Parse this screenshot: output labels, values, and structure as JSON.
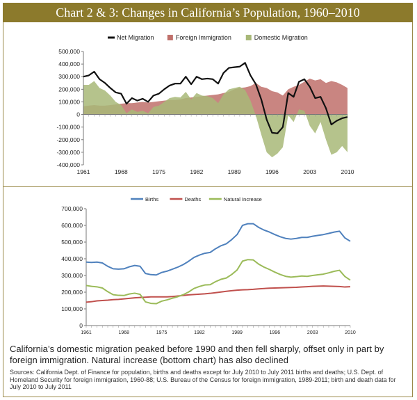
{
  "title": "Chart 2 & 3: Changes in California’s Population, 1960–2010",
  "caption": "California’s domestic migration peaked before 1990 and then fell sharply, offset only in part by foreign immigration. Natural increase (bottom chart) has also declined",
  "sources": "Sources: California Dept. of Finance for population, births and deaths except for July 2010 to July 2011 births and deaths; U.S. Dept. of Homeland Security for foreign immigration, 1960-88; U.S. Bureau of the Census for foreign immigration, 1989-2011; birth and death data for July 2010 to July 2011",
  "chart_data": [
    {
      "type": "area",
      "title": "",
      "legend_position": "top",
      "x": [
        1961,
        1962,
        1963,
        1964,
        1965,
        1966,
        1967,
        1968,
        1969,
        1970,
        1971,
        1972,
        1973,
        1974,
        1975,
        1976,
        1977,
        1978,
        1979,
        1980,
        1981,
        1982,
        1983,
        1984,
        1985,
        1986,
        1987,
        1988,
        1989,
        1990,
        1991,
        1992,
        1993,
        1994,
        1995,
        1996,
        1997,
        1998,
        1999,
        2000,
        2001,
        2002,
        2003,
        2004,
        2005,
        2006,
        2007,
        2008,
        2009,
        2010
      ],
      "x_ticks": [
        "1961",
        "1968",
        "1975",
        "1982",
        "1989",
        "1996",
        "2003",
        "2010"
      ],
      "y_ticks": [
        "500,000",
        "400,000",
        "300,000",
        "200,000",
        "100,000",
        "0",
        "-100,000",
        "-200,000",
        "-300,000",
        "-400,000"
      ],
      "ylim": [
        -400000,
        500000
      ],
      "colors": {
        "net": "#111111",
        "foreign": "#c0706b",
        "domestic": "#a8b878"
      },
      "series": [
        {
          "name": "Net Migration",
          "style": "line",
          "color": "#111111",
          "values": [
            300000,
            310000,
            340000,
            280000,
            250000,
            210000,
            175000,
            165000,
            85000,
            130000,
            110000,
            125000,
            100000,
            150000,
            165000,
            200000,
            230000,
            245000,
            245000,
            300000,
            240000,
            300000,
            280000,
            285000,
            280000,
            245000,
            330000,
            370000,
            375000,
            380000,
            410000,
            310000,
            240000,
            120000,
            -40000,
            -145000,
            -150000,
            -100000,
            170000,
            140000,
            260000,
            280000,
            220000,
            130000,
            140000,
            50000,
            -80000,
            -50000,
            -30000,
            -20000
          ]
        },
        {
          "name": "Foreign Immigration",
          "style": "area",
          "color": "#c0706b",
          "values": [
            65000,
            70000,
            75000,
            70000,
            70000,
            75000,
            80000,
            85000,
            90000,
            90000,
            95000,
            100000,
            95000,
            100000,
            105000,
            110000,
            115000,
            115000,
            120000,
            130000,
            135000,
            140000,
            145000,
            150000,
            155000,
            160000,
            170000,
            180000,
            200000,
            210000,
            215000,
            225000,
            250000,
            220000,
            210000,
            185000,
            175000,
            150000,
            200000,
            220000,
            235000,
            260000,
            285000,
            270000,
            280000,
            250000,
            265000,
            255000,
            235000,
            210000
          ]
        },
        {
          "name": "Domestic Migration",
          "style": "area",
          "color": "#a8b878",
          "values": [
            235000,
            235000,
            265000,
            210000,
            190000,
            150000,
            100000,
            75000,
            10000,
            40000,
            20000,
            30000,
            10000,
            60000,
            70000,
            100000,
            130000,
            140000,
            135000,
            180000,
            120000,
            170000,
            150000,
            145000,
            130000,
            90000,
            160000,
            200000,
            210000,
            220000,
            195000,
            110000,
            -10000,
            -160000,
            -300000,
            -340000,
            -310000,
            -260000,
            -5000,
            -60000,
            40000,
            30000,
            -90000,
            -150000,
            -60000,
            -200000,
            -320000,
            -300000,
            -250000,
            -300000
          ]
        }
      ]
    },
    {
      "type": "line",
      "title": "",
      "legend_position": "top",
      "x": [
        1961,
        1962,
        1963,
        1964,
        1965,
        1966,
        1967,
        1968,
        1969,
        1970,
        1971,
        1972,
        1973,
        1974,
        1975,
        1976,
        1977,
        1978,
        1979,
        1980,
        1981,
        1982,
        1983,
        1984,
        1985,
        1986,
        1987,
        1988,
        1989,
        1990,
        1991,
        1992,
        1993,
        1994,
        1995,
        1996,
        1997,
        1998,
        1999,
        2000,
        2001,
        2002,
        2003,
        2004,
        2005,
        2006,
        2007,
        2008,
        2009,
        2010
      ],
      "x_ticks": [
        "1961",
        "1968",
        "1975",
        "1982",
        "1989",
        "1996",
        "2003",
        "2010"
      ],
      "y_ticks": [
        "700,000",
        "600,000",
        "500,000",
        "400,000",
        "300,000",
        "200,000",
        "100,000",
        "0"
      ],
      "ylim": [
        0,
        700000
      ],
      "series": [
        {
          "name": "Births",
          "color": "#4f81bd",
          "values": [
            380000,
            378000,
            380000,
            375000,
            355000,
            340000,
            338000,
            340000,
            352000,
            360000,
            355000,
            312000,
            305000,
            303000,
            318000,
            326000,
            338000,
            350000,
            365000,
            385000,
            408000,
            422000,
            433000,
            438000,
            460000,
            478000,
            490000,
            515000,
            545000,
            600000,
            610000,
            610000,
            588000,
            572000,
            560000,
            545000,
            532000,
            522000,
            518000,
            522000,
            528000,
            528000,
            535000,
            540000,
            545000,
            552000,
            560000,
            565000,
            525000,
            505000
          ]
        },
        {
          "name": "Deaths",
          "color": "#c0504d",
          "values": [
            140000,
            143000,
            148000,
            150000,
            152000,
            155000,
            157000,
            160000,
            163000,
            166000,
            168000,
            170000,
            172000,
            172000,
            172000,
            172000,
            174000,
            177000,
            180000,
            184000,
            186000,
            188000,
            190000,
            193000,
            197000,
            201000,
            205000,
            209000,
            212000,
            214000,
            215000,
            217000,
            220000,
            222000,
            224000,
            225000,
            226000,
            227000,
            228000,
            229000,
            231000,
            233000,
            235000,
            236000,
            237000,
            236000,
            235000,
            234000,
            231000,
            233000
          ]
        },
        {
          "name": "Natural Increase",
          "color": "#9bbb59",
          "values": [
            240000,
            235000,
            232000,
            225000,
            203000,
            185000,
            181000,
            180000,
            189000,
            194000,
            187000,
            142000,
            133000,
            131000,
            146000,
            154000,
            164000,
            173000,
            185000,
            201000,
            222000,
            234000,
            243000,
            245000,
            263000,
            277000,
            285000,
            306000,
            333000,
            386000,
            395000,
            393000,
            368000,
            350000,
            336000,
            320000,
            306000,
            295000,
            290000,
            293000,
            297000,
            295000,
            300000,
            304000,
            308000,
            316000,
            325000,
            331000,
            294000,
            272000
          ]
        }
      ]
    }
  ]
}
